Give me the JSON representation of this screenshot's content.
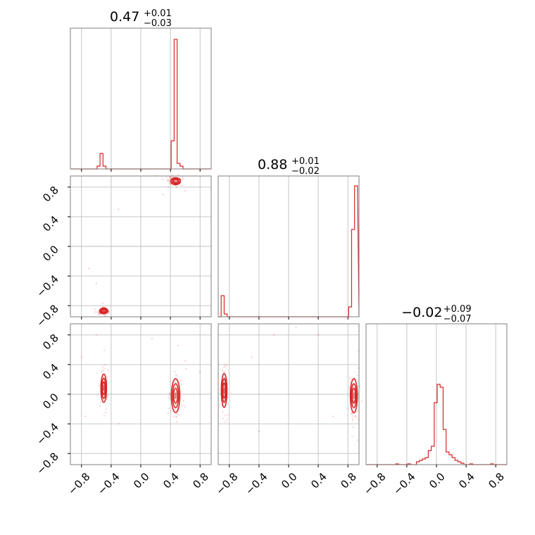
{
  "chart_data": {
    "type": "corner",
    "color": "#d62728",
    "grid": true,
    "titles": [
      {
        "value": "0.47",
        "plus": "+0.01",
        "minus": "−0.03"
      },
      {
        "value": "0.88",
        "plus": "+0.01",
        "minus": "−0.02"
      },
      {
        "value": "−0.02",
        "plus": "+0.09",
        "minus": "−0.07"
      }
    ],
    "axis_range": [
      -0.95,
      0.95
    ],
    "ticks": [
      -0.8,
      -0.4,
      0.0,
      0.4,
      0.8
    ],
    "tick_labels": [
      "−0.8",
      "−0.4",
      "0.0",
      "0.4",
      "0.8"
    ],
    "histograms": [
      {
        "param": 0,
        "bins": [
          [
            -0.58,
            0.02
          ],
          [
            -0.54,
            0.11
          ],
          [
            -0.5,
            0.02
          ],
          [
            0.4,
            0.2
          ],
          [
            0.44,
            0.92
          ],
          [
            0.48,
            0.04
          ],
          [
            0.52,
            0.02
          ]
        ]
      },
      {
        "param": 1,
        "bins": [
          [
            -0.92,
            0.15
          ],
          [
            -0.88,
            0.02
          ],
          [
            0.8,
            0.07
          ],
          [
            0.84,
            0.62
          ],
          [
            0.88,
            0.93
          ],
          [
            0.92,
            0.04
          ]
        ]
      },
      {
        "param": 2,
        "bins": [
          [
            -0.56,
            0.005
          ],
          [
            -0.4,
            0.005
          ],
          [
            -0.28,
            0.02
          ],
          [
            -0.24,
            0.03
          ],
          [
            -0.2,
            0.04
          ],
          [
            -0.16,
            0.05
          ],
          [
            -0.12,
            0.1
          ],
          [
            -0.08,
            0.13
          ],
          [
            -0.04,
            0.44
          ],
          [
            0.0,
            0.57
          ],
          [
            0.04,
            0.55
          ],
          [
            0.08,
            0.25
          ],
          [
            0.12,
            0.09
          ],
          [
            0.16,
            0.07
          ],
          [
            0.2,
            0.05
          ],
          [
            0.24,
            0.03
          ],
          [
            0.28,
            0.02
          ],
          [
            0.32,
            0.01
          ],
          [
            0.44,
            0.005
          ],
          [
            0.72,
            0.005
          ]
        ]
      }
    ],
    "scatter_panels": [
      {
        "x_param": 0,
        "y_param": 1,
        "clusters": [
          {
            "cx": 0.47,
            "cy": 0.88,
            "sx": 0.035,
            "sy": 0.025
          },
          {
            "cx": -0.5,
            "cy": -0.87,
            "sx": 0.03,
            "sy": 0.02
          }
        ],
        "outliers": [
          [
            0.2,
            0.95
          ],
          [
            -0.3,
            0.5
          ],
          [
            -0.6,
            -0.5
          ],
          [
            0.6,
            0.75
          ],
          [
            -0.7,
            -0.3
          ],
          [
            0.3,
            0.7
          ]
        ]
      },
      {
        "x_param": 0,
        "y_param": 2,
        "clusters": [
          {
            "cx": 0.47,
            "cy": -0.02,
            "sx": 0.03,
            "sy": 0.12
          },
          {
            "cx": -0.5,
            "cy": 0.08,
            "sx": 0.02,
            "sy": 0.1
          }
        ],
        "outliers": [
          [
            -0.8,
            0.5
          ],
          [
            -0.6,
            0.8
          ],
          [
            0.15,
            0.75
          ],
          [
            0.6,
            0.45
          ],
          [
            -0.3,
            -0.4
          ],
          [
            0.8,
            0.3
          ],
          [
            -0.75,
            -0.3
          ]
        ]
      },
      {
        "x_param": 1,
        "y_param": 2,
        "clusters": [
          {
            "cx": 0.88,
            "cy": -0.02,
            "sx": 0.025,
            "sy": 0.12
          },
          {
            "cx": -0.87,
            "cy": 0.05,
            "sx": 0.02,
            "sy": 0.12
          }
        ],
        "outliers": [
          [
            -0.2,
            0.8
          ],
          [
            0.4,
            0.8
          ],
          [
            -0.5,
            0.5
          ],
          [
            0.6,
            -0.3
          ],
          [
            -0.4,
            -0.5
          ],
          [
            0.1,
            0.9
          ]
        ]
      }
    ]
  }
}
